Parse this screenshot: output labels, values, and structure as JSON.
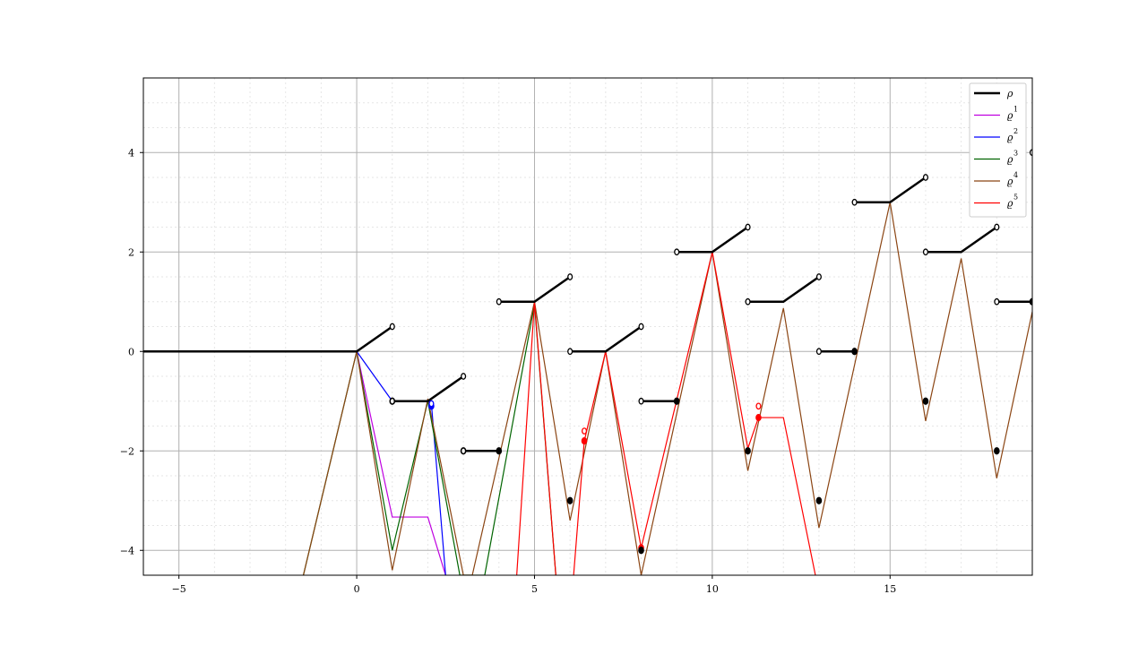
{
  "chart_data": {
    "type": "line",
    "title": "",
    "xlabel": "",
    "ylabel": "",
    "xlim": [
      -6,
      19
    ],
    "ylim": [
      -4.5,
      5.5
    ],
    "x_ticks": [
      -5,
      0,
      5,
      10,
      15
    ],
    "x_tick_labels": [
      "−5",
      "0",
      "5",
      "10",
      "15"
    ],
    "y_ticks": [
      -4,
      -2,
      0,
      2,
      4
    ],
    "y_tick_labels": [
      "−4",
      "−2",
      "0",
      "2",
      "4"
    ],
    "grid": "major solid, minor dotted",
    "legend_position": "top-right",
    "legend": [
      {
        "label": "ρ",
        "sup": "",
        "color": "#000000"
      },
      {
        "label": "ϱ",
        "sup": "1",
        "color": "#bf00e0"
      },
      {
        "label": "ϱ",
        "sup": "2",
        "color": "#0000ff"
      },
      {
        "label": "ϱ",
        "sup": "3",
        "color": "#006400"
      },
      {
        "label": "ϱ",
        "sup": "4",
        "color": "#8b4513"
      },
      {
        "label": "ϱ",
        "sup": "5",
        "color": "#ff0000"
      }
    ],
    "series": [
      {
        "name": "ρ",
        "color": "#000000",
        "width": 2.5,
        "segments": [
          [
            [
              -6,
              0
            ],
            [
              0,
              0
            ],
            [
              1,
              0.5
            ]
          ],
          [
            [
              1,
              -1
            ],
            [
              2,
              -1
            ],
            [
              3,
              -0.5
            ]
          ],
          [
            [
              3,
              -2
            ],
            [
              4,
              -2
            ]
          ],
          [
            [
              4,
              1
            ],
            [
              5,
              1
            ],
            [
              6,
              1.5
            ]
          ],
          [
            [
              6,
              0
            ],
            [
              7,
              0
            ],
            [
              8,
              0.5
            ]
          ],
          [
            [
              8,
              -1
            ],
            [
              9,
              -1
            ]
          ],
          [
            [
              9,
              2
            ],
            [
              10,
              2
            ],
            [
              11,
              2.5
            ]
          ],
          [
            [
              11,
              1
            ],
            [
              12,
              1
            ],
            [
              13,
              1.5
            ]
          ],
          [
            [
              13,
              0
            ],
            [
              14,
              0
            ]
          ],
          [
            [
              14,
              3
            ],
            [
              15,
              3
            ],
            [
              16,
              3.5
            ]
          ],
          [
            [
              16,
              2
            ],
            [
              17,
              2
            ],
            [
              18,
              2.5
            ]
          ],
          [
            [
              18,
              1
            ],
            [
              19,
              1
            ]
          ]
        ],
        "open_points": [
          [
            1,
            0.5
          ],
          [
            3,
            -0.5
          ],
          [
            6,
            1.5
          ],
          [
            8,
            0.5
          ],
          [
            11,
            2.5
          ],
          [
            13,
            1.5
          ],
          [
            16,
            3.5
          ],
          [
            18,
            2.5
          ],
          [
            19,
            4
          ],
          [
            4,
            1
          ],
          [
            6,
            0
          ],
          [
            9,
            2
          ],
          [
            11,
            1
          ],
          [
            13,
            0
          ],
          [
            14,
            3
          ],
          [
            16,
            2
          ],
          [
            18,
            1
          ],
          [
            3,
            -2
          ],
          [
            8,
            -1
          ],
          [
            1,
            -1
          ]
        ],
        "filled_points": [
          [
            1,
            -1
          ],
          [
            3,
            -2
          ],
          [
            4,
            -2
          ],
          [
            6,
            -3
          ],
          [
            8,
            -4
          ],
          [
            9,
            -1
          ],
          [
            11,
            -2
          ],
          [
            13,
            -3
          ],
          [
            14,
            0
          ],
          [
            16,
            -1
          ],
          [
            18,
            -2
          ],
          [
            19,
            1
          ]
        ]
      },
      {
        "name": "ϱ¹",
        "color": "#bf00e0",
        "width": 1.2,
        "points": [
          [
            0,
            0
          ],
          [
            1,
            -3.33
          ],
          [
            2,
            -3.33
          ],
          [
            2.5,
            -4.5
          ]
        ]
      },
      {
        "name": "ϱ²",
        "color": "#0000ff",
        "width": 1.2,
        "points": [
          [
            -6,
            0
          ],
          [
            0,
            0
          ],
          [
            1,
            -1
          ],
          [
            2,
            -1
          ],
          [
            2.1,
            -1.05
          ],
          [
            2.5,
            -4.5
          ]
        ],
        "filled_points": [
          [
            2.1,
            -1.1
          ]
        ],
        "open_points": [
          [
            2.1,
            -1.05
          ]
        ]
      },
      {
        "name": "ϱ³",
        "color": "#006400",
        "width": 1.2,
        "points": [
          [
            -1.5,
            -4.5
          ],
          [
            0,
            0
          ],
          [
            1,
            -4
          ],
          [
            2,
            -1
          ],
          [
            2.9,
            -4.5
          ],
          [
            3.6,
            -4.5
          ],
          [
            5,
            0.95
          ],
          [
            5.6,
            -4.5
          ]
        ]
      },
      {
        "name": "ϱ⁴",
        "color": "#8b4513",
        "width": 1.2,
        "points": [
          [
            -1.5,
            -4.5
          ],
          [
            0,
            0
          ],
          [
            1,
            -4.4
          ],
          [
            2,
            -0.95
          ],
          [
            3,
            -4.5
          ],
          [
            3.25,
            -4.5
          ],
          [
            5,
            1
          ],
          [
            6,
            -3.4
          ],
          [
            7,
            0
          ],
          [
            8,
            -4.5
          ],
          [
            10,
            2
          ],
          [
            11,
            -2.4
          ],
          [
            12,
            0.87
          ],
          [
            13,
            -3.55
          ],
          [
            15,
            3
          ],
          [
            16,
            -1.4
          ],
          [
            17,
            1.87
          ],
          [
            18,
            -2.55
          ],
          [
            19,
            0.8
          ]
        ]
      },
      {
        "name": "ϱ⁵",
        "color": "#ff0000",
        "width": 1.2,
        "points": [
          [
            4.5,
            -4.5
          ],
          [
            5,
            1
          ],
          [
            5.6,
            -4.5
          ]
        ],
        "extra_segments": [
          [
            [
              6.1,
              -4.5
            ],
            [
              6.4,
              -1.8
            ],
            [
              7,
              0
            ],
            [
              8,
              -3.95
            ],
            [
              10,
              2
            ],
            [
              11,
              -1.95
            ],
            [
              11.3,
              -1.33
            ],
            [
              12,
              -1.33
            ],
            [
              12.9,
              -4.5
            ]
          ]
        ],
        "filled_points": [
          [
            6.4,
            -1.8
          ],
          [
            8,
            -3.95
          ],
          [
            11.3,
            -1.33
          ]
        ],
        "open_points": [
          [
            6.4,
            -1.6
          ],
          [
            11.3,
            -1.1
          ]
        ]
      }
    ]
  }
}
